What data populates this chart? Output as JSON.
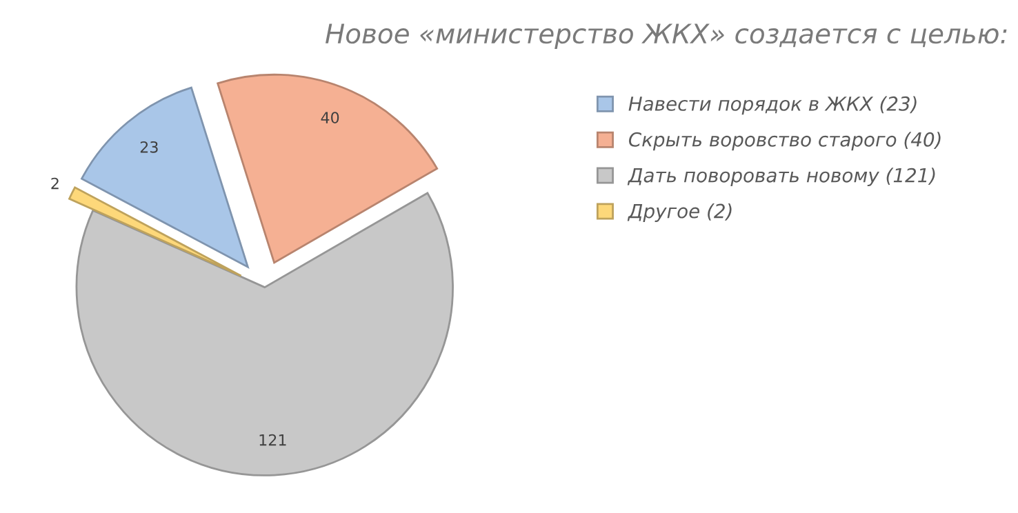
{
  "chart_data": {
    "type": "pie",
    "title": "Новое «министерство ЖКХ» создается с целью:",
    "categories": [
      "Навести порядок в ЖКХ (23)",
      "Скрыть воровство старого (40)",
      "Дать поворовать новому (121)",
      "Другое (2)"
    ],
    "values": [
      23,
      40,
      121,
      2
    ],
    "colors": [
      "#a9c6e8",
      "#f5b093",
      "#c8c8c8",
      "#fdd87a"
    ],
    "data_labels": true,
    "legend": "right"
  }
}
